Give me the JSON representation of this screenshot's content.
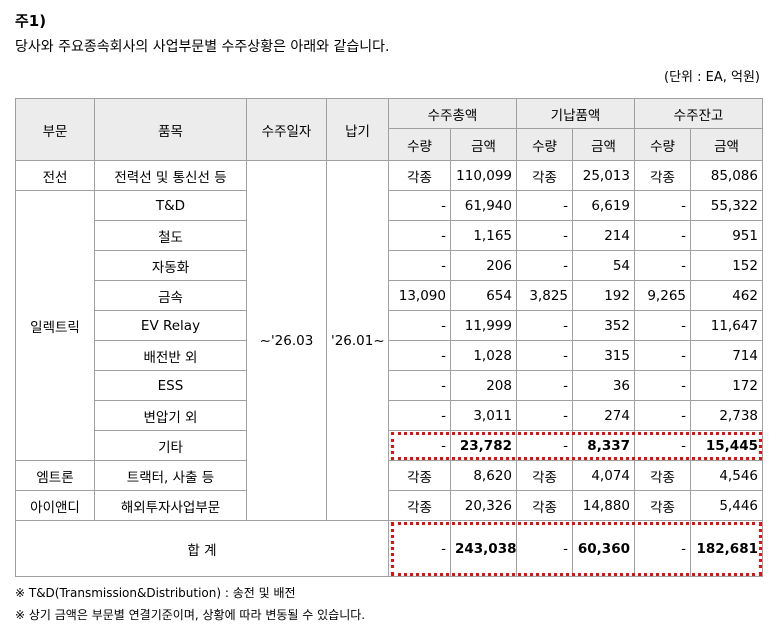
{
  "header": {
    "title": "주1)",
    "subtitle": "당사와 주요종속회사의 사업부문별 수주상황은 아래와 같습니다.",
    "unit": "(단위 : EA, 억원)"
  },
  "table": {
    "headers": {
      "segment": "부문",
      "item": "품목",
      "order_date": "수주일자",
      "due": "납기",
      "groups": [
        "수주총액",
        "기납품액",
        "수주잔고"
      ],
      "sub": [
        "수량",
        "금액",
        "수량",
        "금액",
        "수량",
        "금액"
      ]
    },
    "order_date": "~'26.03",
    "due": "'26.01~",
    "segments": [
      {
        "name": "전선",
        "rows": [
          {
            "item": "전력선 및 통신선 등",
            "cells": [
              "각종",
              "110,099",
              "각종",
              "25,013",
              "각종",
              "85,086"
            ]
          }
        ]
      },
      {
        "name": "일렉트릭",
        "rows": [
          {
            "item": "T&D",
            "cells": [
              "-",
              "61,940",
              "-",
              "6,619",
              "-",
              "55,322"
            ]
          },
          {
            "item": "철도",
            "cells": [
              "-",
              "1,165",
              "-",
              "214",
              "-",
              "951"
            ]
          },
          {
            "item": "자동화",
            "cells": [
              "-",
              "206",
              "-",
              "54",
              "-",
              "152"
            ]
          },
          {
            "item": "금속",
            "cells": [
              "13,090",
              "654",
              "3,825",
              "192",
              "9,265",
              "462"
            ]
          },
          {
            "item": "EV Relay",
            "cells": [
              "-",
              "11,999",
              "-",
              "352",
              "-",
              "11,647"
            ]
          },
          {
            "item": "배전반 외",
            "cells": [
              "-",
              "1,028",
              "-",
              "315",
              "-",
              "714"
            ]
          },
          {
            "item": "ESS",
            "cells": [
              "-",
              "208",
              "-",
              "36",
              "-",
              "172"
            ]
          },
          {
            "item": "변압기 외",
            "cells": [
              "-",
              "3,011",
              "-",
              "274",
              "-",
              "2,738"
            ]
          },
          {
            "item": "기타",
            "cells": [
              "-",
              "23,782",
              "-",
              "8,337",
              "-",
              "15,445"
            ],
            "highlight": true
          }
        ]
      },
      {
        "name": "엠트론",
        "rows": [
          {
            "item": "트랙터, 사출 등",
            "cells": [
              "각종",
              "8,620",
              "각종",
              "4,074",
              "각종",
              "4,546"
            ]
          }
        ]
      },
      {
        "name": "아이앤디",
        "rows": [
          {
            "item": "해외투자사업부문",
            "cells": [
              "각종",
              "20,326",
              "각종",
              "14,880",
              "각종",
              "5,446"
            ]
          }
        ]
      }
    ],
    "total": {
      "label": "합 계",
      "cells": [
        "-",
        "243,038",
        "-",
        "60,360",
        "-",
        "182,681"
      ],
      "highlight": true
    }
  },
  "notes": [
    "※ T&D(Transmission&Distribution) : 송전 및 배전",
    "※ 상기 금액은 부문별 연결기준이며, 상황에 따라 변동될 수 있습니다."
  ]
}
